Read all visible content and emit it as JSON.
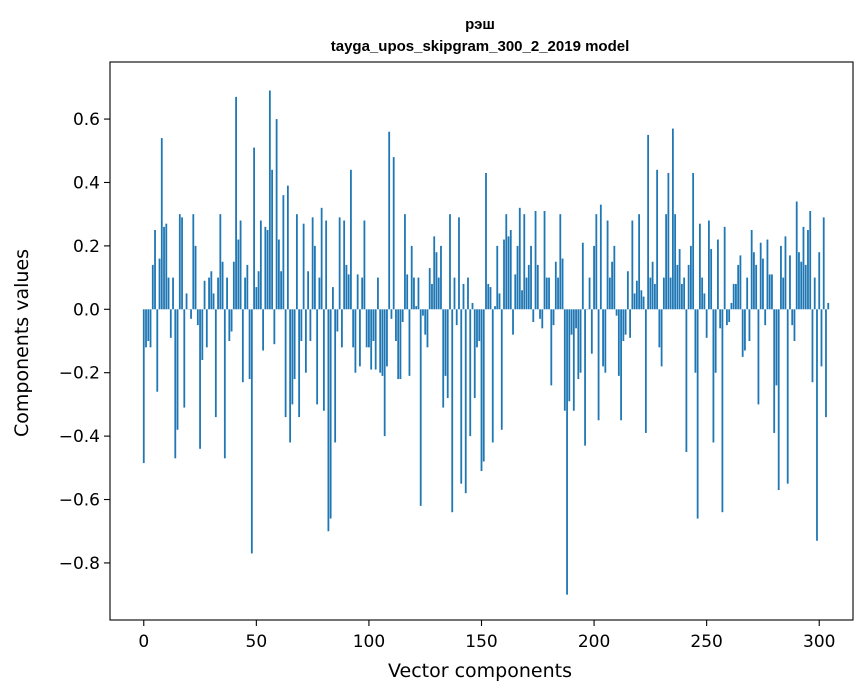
{
  "chart_data": {
    "type": "bar",
    "title": "рэш",
    "subtitle": "tayga_upos_skipgram_300_2_2019 model",
    "xlabel": "Vector components",
    "ylabel": "Components values",
    "xlim": [
      -15,
      315
    ],
    "ylim": [
      -0.98,
      0.78
    ],
    "xticks": [
      0,
      50,
      100,
      150,
      200,
      250,
      300
    ],
    "yticks": [
      -0.8,
      -0.6,
      -0.4,
      -0.2,
      0.0,
      0.2,
      0.4,
      0.6
    ],
    "ytick_labels": [
      "−0.8",
      "−0.6",
      "−0.4",
      "−0.2",
      "0.0",
      "0.2",
      "0.4",
      "0.6"
    ],
    "bar_color": "#1f77b4",
    "values": [
      -0.485,
      -0.12,
      -0.1,
      -0.12,
      0.14,
      0.25,
      -0.26,
      0.16,
      0.54,
      0.26,
      0.27,
      0.1,
      -0.09,
      0.1,
      -0.47,
      -0.38,
      0.3,
      0.29,
      -0.31,
      0.05,
      0.0,
      -0.03,
      0.3,
      0.2,
      -0.05,
      -0.44,
      -0.16,
      0.09,
      -0.12,
      0.1,
      0.12,
      0.05,
      -0.34,
      0.1,
      0.3,
      0.15,
      -0.47,
      0.1,
      -0.1,
      -0.07,
      0.15,
      0.67,
      0.22,
      0.28,
      -0.23,
      0.1,
      0.14,
      -0.22,
      -0.77,
      0.51,
      0.07,
      0.12,
      0.28,
      -0.13,
      0.26,
      0.25,
      0.69,
      0.44,
      -0.11,
      0.6,
      0.22,
      0.12,
      0.36,
      -0.34,
      0.39,
      -0.42,
      -0.3,
      -0.22,
      0.3,
      -0.34,
      -0.1,
      0.27,
      -0.2,
      0.12,
      -0.1,
      0.29,
      0.2,
      -0.3,
      0.1,
      0.32,
      -0.32,
      0.28,
      -0.7,
      -0.66,
      0.07,
      -0.42,
      -0.07,
      0.29,
      -0.12,
      0.28,
      0.14,
      0.11,
      0.44,
      -0.12,
      -0.2,
      0.11,
      -0.18,
      0.1,
      0.28,
      -0.12,
      -0.12,
      -0.19,
      -0.1,
      -0.19,
      0.1,
      -0.2,
      -0.21,
      -0.4,
      -0.18,
      0.56,
      -0.03,
      0.48,
      -0.1,
      -0.22,
      -0.22,
      -0.04,
      0.3,
      0.11,
      -0.21,
      0.2,
      0.1,
      0.01,
      0.1,
      -0.62,
      -0.02,
      -0.08,
      -0.12,
      0.13,
      0.08,
      0.23,
      0.18,
      0.1,
      0.2,
      -0.31,
      -0.21,
      -0.28,
      0.3,
      -0.64,
      0.1,
      -0.05,
      0.29,
      -0.55,
      0.08,
      -0.58,
      0.1,
      -0.4,
      0.02,
      -0.28,
      -0.12,
      -0.1,
      -0.51,
      -0.48,
      0.43,
      0.08,
      0.07,
      -0.42,
      0.01,
      0.2,
      0.05,
      -0.38,
      0.22,
      0.3,
      0.23,
      0.25,
      -0.08,
      0.11,
      0.2,
      0.32,
      0.06,
      0.3,
      0.1,
      0.14,
      0.2,
      -0.04,
      0.31,
      0.14,
      -0.03,
      -0.06,
      0.31,
      0.1,
      0.1,
      -0.24,
      -0.05,
      0.15,
      0.1,
      0.3,
      0.16,
      -0.32,
      -0.9,
      -0.29,
      -0.08,
      -0.32,
      -0.06,
      -0.22,
      -0.2,
      0.21,
      -0.43,
      0.0,
      0.1,
      -0.14,
      0.2,
      0.3,
      -0.35,
      0.33,
      -0.18,
      -0.2,
      0.28,
      0.1,
      0.15,
      0.2,
      -0.02,
      -0.21,
      -0.35,
      -0.1,
      -0.08,
      0.12,
      -0.09,
      0.28,
      0.05,
      0.09,
      0.3,
      0.06,
      0.04,
      -0.39,
      0.55,
      0.1,
      0.15,
      0.08,
      0.44,
      -0.12,
      -0.18,
      0.1,
      0.3,
      0.43,
      0.1,
      0.57,
      0.3,
      0.14,
      0.19,
      0.08,
      0.1,
      -0.45,
      0.14,
      0.2,
      0.43,
      -0.2,
      -0.66,
      0.27,
      0.1,
      0.05,
      -0.09,
      0.28,
      0.19,
      -0.42,
      -0.2,
      0.22,
      -0.06,
      -0.64,
      0.26,
      -0.05,
      -0.04,
      0.02,
      0.08,
      0.08,
      0.14,
      0.17,
      -0.15,
      -0.13,
      0.1,
      -0.1,
      0.25,
      0.18,
      0.14,
      -0.3,
      0.21,
      0.16,
      -0.05,
      0.22,
      0.11,
      0.11,
      -0.39,
      -0.24,
      -0.57,
      0.2,
      0.1,
      0.23,
      -0.55,
      0.17,
      -0.05,
      -0.1,
      0.34,
      0.18,
      0.15,
      0.26,
      0.14,
      0.25,
      0.31,
      -0.23,
      0.1,
      -0.73,
      0.18,
      -0.18,
      0.29,
      -0.34,
      0.02
    ]
  }
}
